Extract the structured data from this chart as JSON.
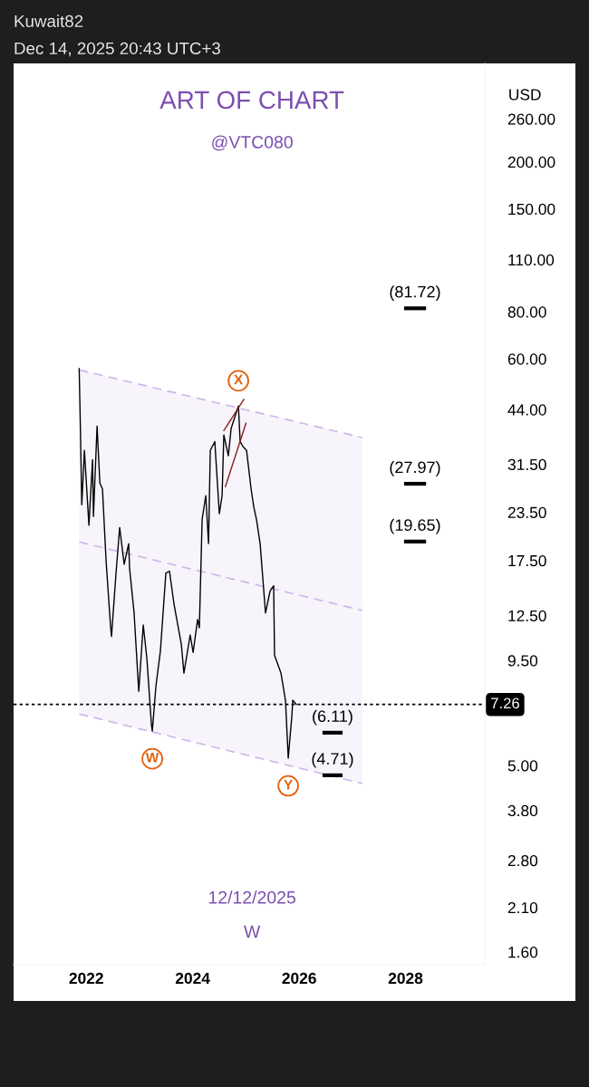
{
  "chart_data": {
    "type": "line",
    "title": "ART OF CHART",
    "subtitle": "@VTC080",
    "ylabel": "USD",
    "log": true,
    "xlim": [
      "2020-08-20",
      "2029-06-28"
    ],
    "xticks": [
      {
        "value": "2022-01-01",
        "label": "2022"
      },
      {
        "value": "2024-01-01",
        "label": "2024"
      },
      {
        "value": "2026-01-01",
        "label": "2026"
      },
      {
        "value": "2028-01-01",
        "label": "2028"
      }
    ],
    "ylim": [
      1.48,
      365
    ],
    "yticks": [
      {
        "value": 260,
        "label": "260.00"
      },
      {
        "value": 200,
        "label": "200.00"
      },
      {
        "value": 150,
        "label": "150.00"
      },
      {
        "value": 110,
        "label": "110.00"
      },
      {
        "value": 80,
        "label": "80.00"
      },
      {
        "value": 60,
        "label": "60.00"
      },
      {
        "value": 44,
        "label": "44.00"
      },
      {
        "value": 31.5,
        "label": "31.50"
      },
      {
        "value": 23.5,
        "label": "23.50"
      },
      {
        "value": 17.5,
        "label": "17.50"
      },
      {
        "value": 12.5,
        "label": "12.50"
      },
      {
        "value": 9.5,
        "label": "9.50"
      },
      {
        "value": 5,
        "label": "5.00"
      },
      {
        "value": 3.8,
        "label": "3.80"
      },
      {
        "value": 2.8,
        "label": "2.80"
      },
      {
        "value": 2.1,
        "label": "2.10"
      },
      {
        "value": 1.6,
        "label": "1.60"
      }
    ],
    "grid": false,
    "legend": false,
    "tick_labels": "xy",
    "series": [
      {
        "line_style": "dashed",
        "color": "#cdb8e6",
        "x": [
          "2021-11-13",
          "2027-03-10"
        ],
        "values": [
          56.1,
          37.1
        ]
      },
      {
        "line_style": "dashed",
        "color": "#cdb8e6",
        "x": [
          "2021-11-13",
          "2027-03-10"
        ],
        "values": [
          19.6,
          12.9
        ],
        "lower": [
          6.85,
          4.48
        ],
        "upper": [
          56.1,
          37.1
        ]
      },
      {
        "line_style": "dashed",
        "color": "#cdb8e6",
        "x": [
          "2021-11-13",
          "2027-03-10"
        ],
        "values": [
          6.85,
          4.48
        ]
      },
      {
        "color": "#000000",
        "x": [
          "2021-11-13",
          "2021-11-19",
          "2021-12-01",
          "2021-12-19",
          "2022-01-19",
          "2022-02-13",
          "2022-02-19",
          "2022-03-16",
          "2022-04-04",
          "2022-04-22",
          "2022-05-17",
          "2022-06-17",
          "2022-06-23",
          "2022-07-24",
          "2022-08-18",
          "2022-09-18",
          "2022-10-19",
          "2022-10-25",
          "2022-11-25",
          "2022-12-27",
          "2023-01-27",
          "2023-02-21",
          "2023-03-24",
          "2023-03-30",
          "2023-04-24",
          "2023-05-25",
          "2023-07-01",
          "2023-07-26",
          "2023-08-26",
          "2023-10-15",
          "2023-11-02",
          "2023-12-15",
          "2024-01-04",
          "2024-02-04",
          "2024-02-16",
          "2024-03-06",
          "2024-03-31",
          "2024-04-19",
          "2024-05-01",
          "2024-06-01",
          "2024-07-02",
          "2024-07-21",
          "2024-08-02",
          "2024-09-02",
          "2024-09-21",
          "2024-11-10",
          "2024-11-22",
          "2024-12-11",
          "2025-01-05",
          "2025-02-05",
          "2025-02-24",
          "2025-03-14",
          "2025-04-08",
          "2025-04-27",
          "2025-05-15",
          "2025-06-15",
          "2025-07-10",
          "2025-07-16",
          "2025-08-29",
          "2025-09-29",
          "2025-10-18",
          "2025-11-12",
          "2025-11-18",
          "2025-12-12"
        ],
        "values": [
          56.5,
          44,
          24.6,
          34.3,
          21.7,
          32.4,
          22.9,
          39.8,
          28.1,
          27.1,
          17.4,
          11.6,
          11.0,
          16.2,
          21.4,
          17.1,
          19.4,
          16.7,
          12.7,
          7.87,
          11.8,
          9.6,
          6.41,
          6.17,
          8.13,
          10.1,
          16.2,
          16.4,
          13.4,
          10.5,
          8.79,
          11.1,
          9.98,
          12.2,
          11.6,
          22.5,
          26.0,
          19.4,
          34.3,
          36.2,
          23.3,
          26.0,
          37.7,
          33.2,
          39.2,
          45.0,
          36.2,
          35.1,
          34.3,
          27.1,
          24.2,
          22.5,
          19.4,
          15.6,
          12.7,
          14.5,
          15.0,
          9.8,
          8.8,
          7.45,
          5.23,
          6.78,
          7.45,
          7.26
        ]
      },
      {
        "color": "#8b1c1c",
        "x": [
          "2024-08-02",
          "2024-12-17"
        ],
        "values": [
          38.7,
          46.8
        ]
      },
      {
        "color": "#8b1c1c",
        "x": [
          "2024-08-13",
          "2025-01-01"
        ],
        "values": [
          27.5,
          40.5
        ]
      },
      {
        "color": "#000000",
        "x": [
          "2028-01-04",
          "2028-05-08"
        ],
        "values": [
          81.72,
          81.72
        ]
      },
      {
        "color": "#000000",
        "x": [
          "2028-01-04",
          "2028-05-08"
        ],
        "values": [
          27.97,
          27.97
        ]
      },
      {
        "color": "#000000",
        "x": [
          "2028-01-04",
          "2028-05-08"
        ],
        "values": [
          19.65,
          19.65
        ]
      },
      {
        "color": "#000000",
        "x": [
          "2026-06-23",
          "2026-10-13"
        ],
        "values": [
          6.11,
          6.11
        ]
      },
      {
        "color": "#000000",
        "x": [
          "2026-06-23",
          "2026-10-13"
        ],
        "values": [
          4.71,
          4.71
        ]
      }
    ],
    "ref_lines": [
      {
        "axis": "y",
        "value": 7.26,
        "label": "7.26",
        "color": "#000000",
        "line_style": "dotted"
      }
    ],
    "annotations": [
      "Kuwait82",
      "Dec 14, 2025 20:43 UTC+3",
      "12/12/2025",
      "W",
      {
        "text": "(81.72)",
        "x": "2028-03-06",
        "y": 81.72
      },
      {
        "text": "(27.97)",
        "x": "2028-03-06",
        "y": 27.97
      },
      {
        "text": "(19.65)",
        "x": "2028-03-06",
        "y": 19.65
      },
      {
        "text": "(6.11)",
        "x": "2026-08-18",
        "y": 6.11
      },
      {
        "text": "(4.71)",
        "x": "2026-08-18",
        "y": 4.71
      },
      {
        "text": "W",
        "x": "2023-03-30",
        "y": 6.17
      },
      {
        "text": "X",
        "x": "2024-11-10",
        "y": 45.0
      },
      {
        "text": "Y",
        "x": "2025-10-18",
        "y": 5.23
      }
    ]
  }
}
